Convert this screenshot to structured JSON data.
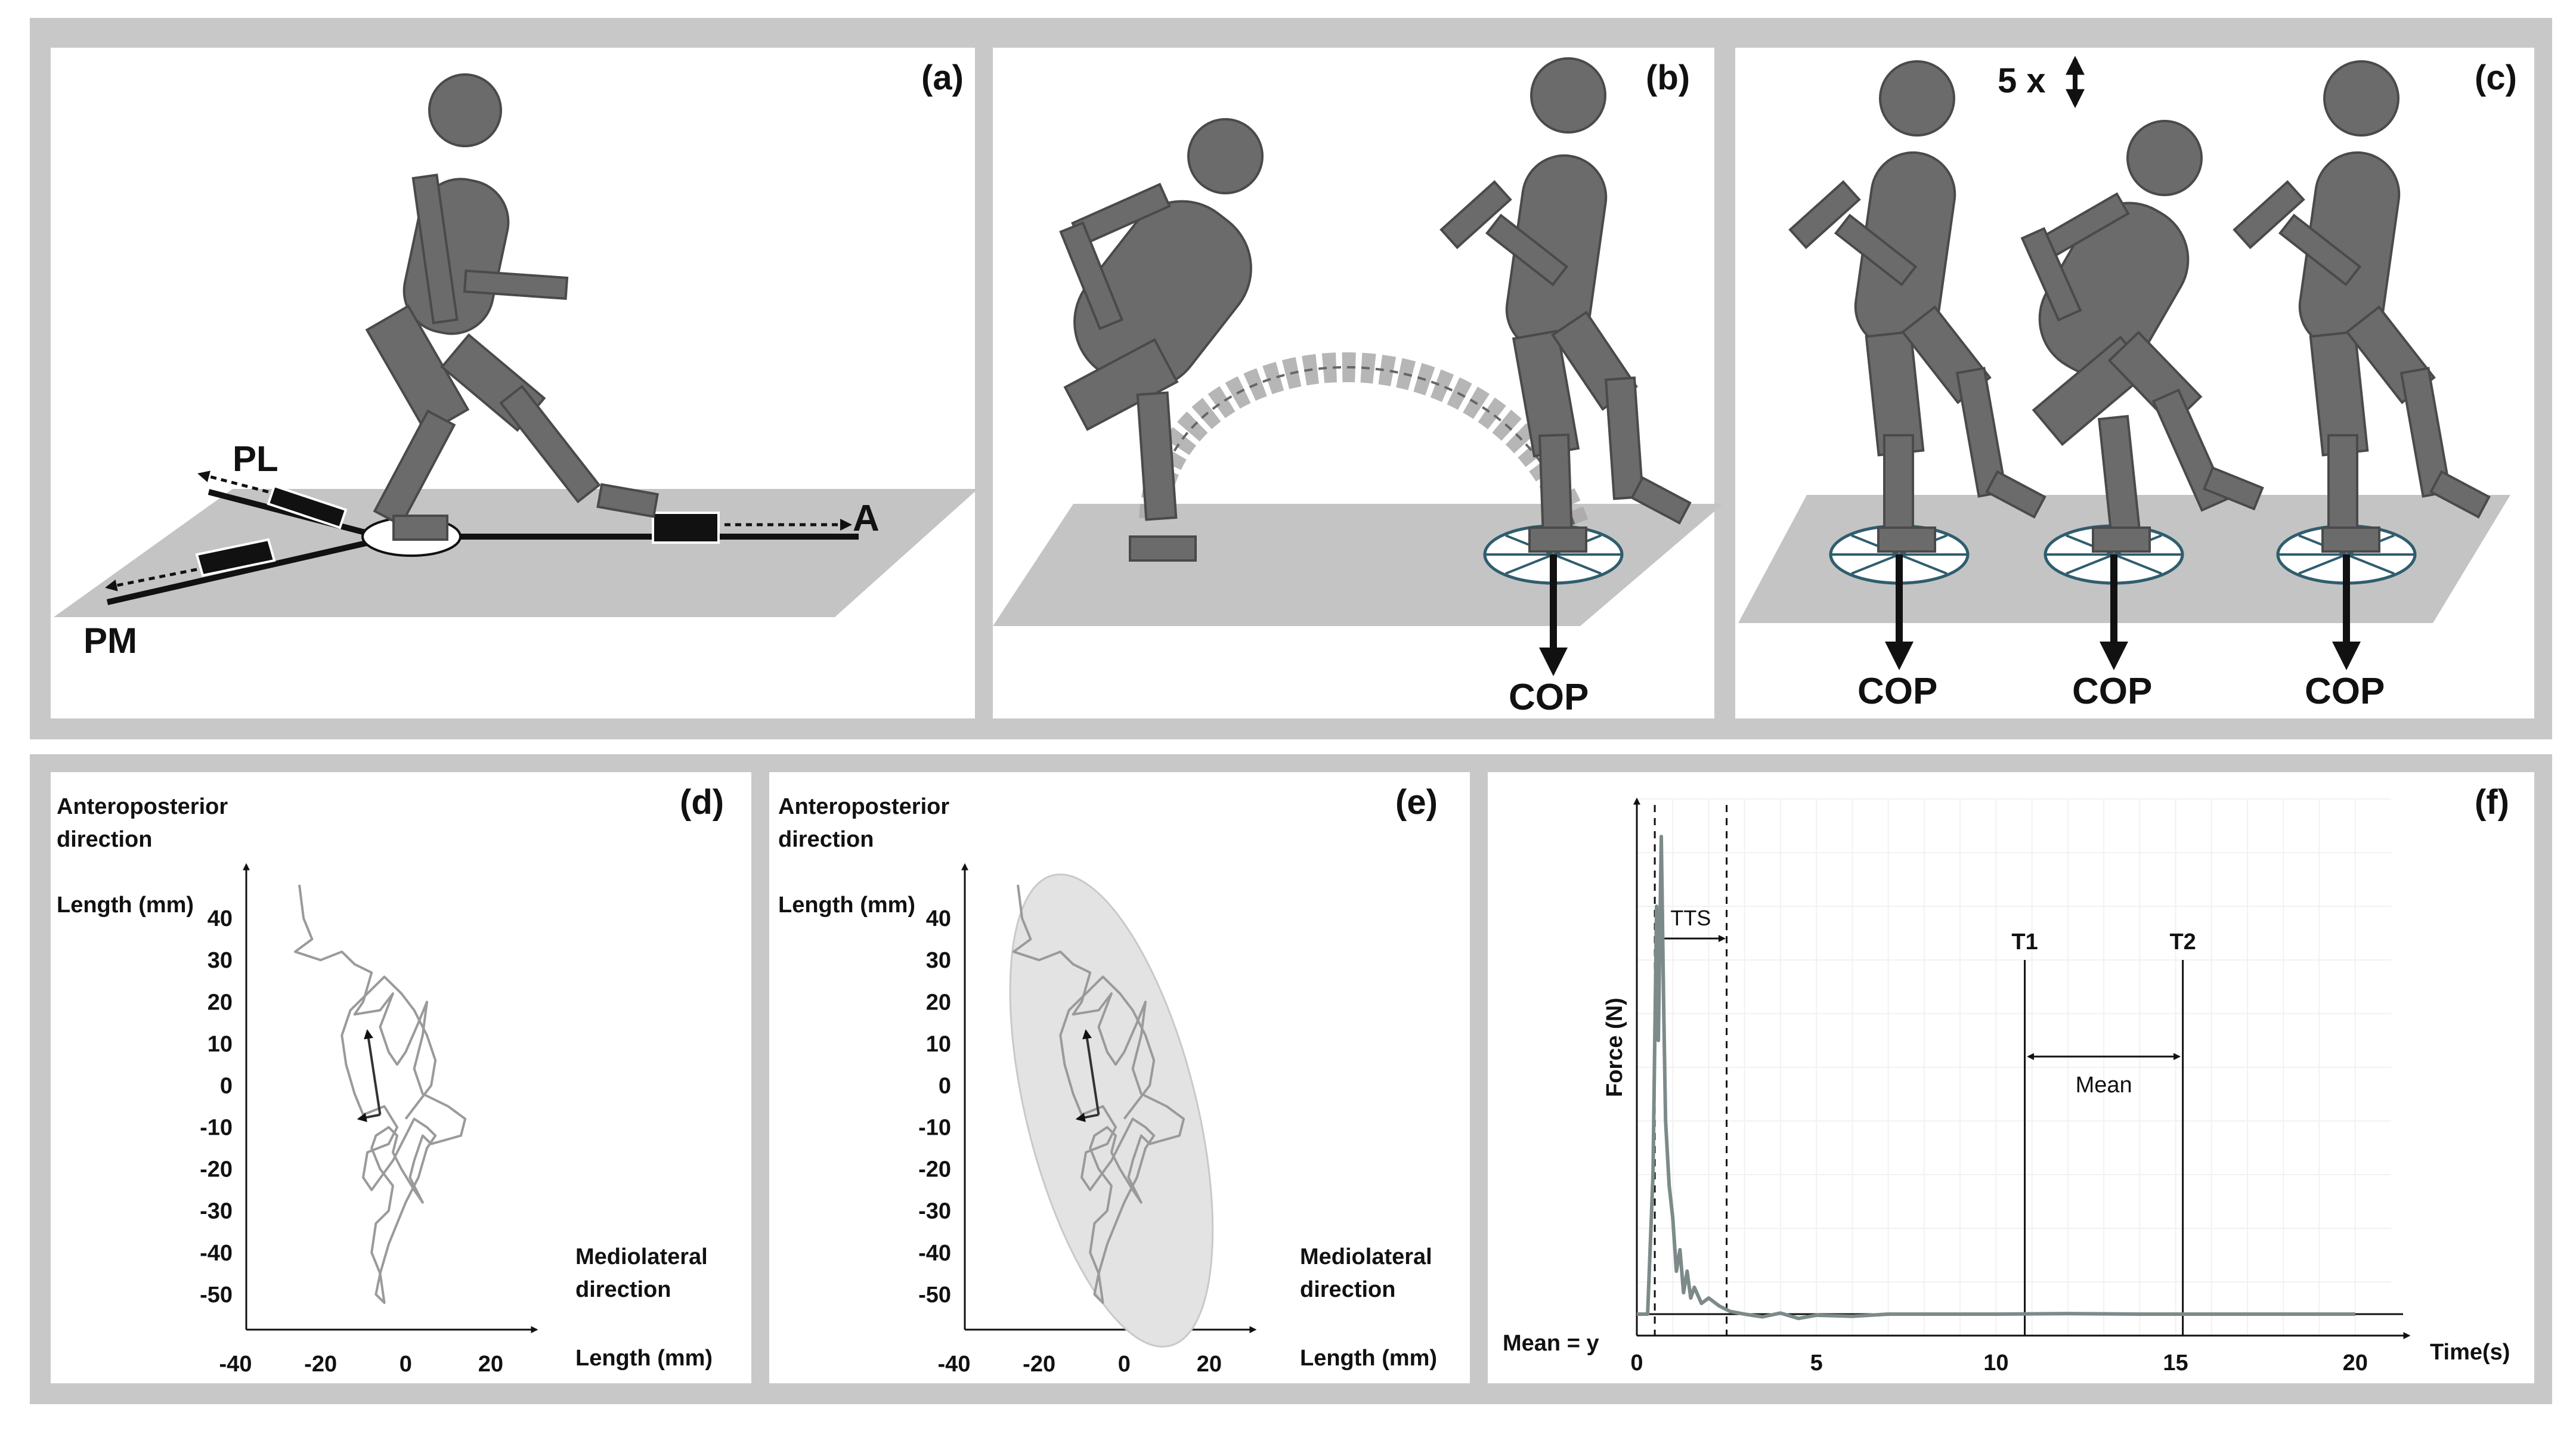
{
  "panels": {
    "a": {
      "label": "(a)",
      "arrow_labels": [
        "PL",
        "A",
        "PM"
      ]
    },
    "b": {
      "label": "(b)",
      "cop": "COP"
    },
    "c": {
      "label": "(c)",
      "repeat": "5 x",
      "cops": [
        "COP",
        "COP",
        "COP"
      ]
    },
    "d": {
      "label": "(d)"
    },
    "e": {
      "label": "(e)"
    },
    "f": {
      "label": "(f)"
    }
  },
  "colors": {
    "figure": "#6b6b6b",
    "figure_stroke": "#4a4a4a",
    "floor": "#c4c4c4",
    "frame": "#c8c8c8",
    "trace": "#9a9a9a",
    "ellipse": "#e3e3e3",
    "force_line": "#7d8a8a"
  },
  "chart_data": [
    {
      "type": "line",
      "panel": "(d)",
      "ylabel_top": "Anteroposterior",
      "ylabel_second": "direction",
      "ylabel_unit": "Length (mm)",
      "xlabel_top": "Mediolateral",
      "xlabel_second": "direction",
      "xlabel_unit": "Length (mm)",
      "xticks": [
        "-40",
        "-20",
        "0",
        "20"
      ],
      "yticks": [
        "40",
        "30",
        "20",
        "10",
        "0",
        "-10",
        "-20",
        "-30",
        "-40",
        "-50"
      ],
      "xlim": [
        -40,
        28
      ],
      "ylim": [
        -57,
        50
      ],
      "trace": [
        [
          -25,
          48
        ],
        [
          -24,
          40
        ],
        [
          -22,
          35
        ],
        [
          -26,
          32
        ],
        [
          -20,
          30
        ],
        [
          -15,
          32
        ],
        [
          -12,
          29
        ],
        [
          -8,
          27
        ],
        [
          -10,
          20
        ],
        [
          -12,
          17
        ],
        [
          -6,
          18
        ],
        [
          -3,
          22
        ],
        [
          -6,
          14
        ],
        [
          -4,
          8
        ],
        [
          -2,
          5
        ],
        [
          0,
          8
        ],
        [
          3,
          15
        ],
        [
          5,
          20
        ],
        [
          4,
          12
        ],
        [
          2,
          4
        ],
        [
          4,
          -2
        ],
        [
          10,
          -5
        ],
        [
          14,
          -8
        ],
        [
          13,
          -12
        ],
        [
          6,
          -14
        ],
        [
          4,
          -12
        ],
        [
          2,
          -18
        ],
        [
          1,
          -22
        ],
        [
          4,
          -28
        ],
        [
          2,
          -25
        ],
        [
          -1,
          -20
        ],
        [
          -3,
          -16
        ],
        [
          -2,
          -12
        ],
        [
          -4,
          -10
        ],
        [
          -7,
          -12
        ],
        [
          -8,
          -15
        ],
        [
          -6,
          -20
        ],
        [
          -3,
          -24
        ],
        [
          -4,
          -30
        ],
        [
          -7,
          -33
        ],
        [
          -8,
          -40
        ],
        [
          -6,
          -45
        ],
        [
          -7,
          -50
        ],
        [
          -5,
          -52
        ],
        [
          -6,
          -45
        ],
        [
          -4,
          -38
        ],
        [
          -2,
          -33
        ],
        [
          0,
          -28
        ],
        [
          3,
          -22
        ],
        [
          5,
          -15
        ],
        [
          7,
          -12
        ],
        [
          5,
          -10
        ],
        [
          2,
          -8
        ],
        [
          0,
          -12
        ],
        [
          -3,
          -18
        ],
        [
          -8,
          -25
        ],
        [
          -10,
          -22
        ],
        [
          -9,
          -16
        ],
        [
          -4,
          -14
        ],
        [
          -2,
          -10
        ],
        [
          -5,
          -5
        ],
        [
          -10,
          -7
        ],
        [
          -12,
          -2
        ],
        [
          -14,
          5
        ],
        [
          -15,
          12
        ],
        [
          -13,
          18
        ],
        [
          -9,
          22
        ],
        [
          -5,
          26
        ],
        [
          -1,
          22
        ],
        [
          2,
          18
        ],
        [
          5,
          12
        ],
        [
          7,
          6
        ],
        [
          6,
          0
        ],
        [
          3,
          -4
        ],
        [
          0,
          -8
        ]
      ],
      "vector_origin": [
        -6,
        -7
      ],
      "vector_ap": [
        -9,
        13
      ],
      "vector_ml": [
        -11,
        -8
      ]
    },
    {
      "type": "line",
      "panel": "(e)",
      "ylabel_top": "Anteroposterior",
      "ylabel_second": "direction",
      "ylabel_unit": "Length (mm)",
      "xlabel_top": "Mediolateral",
      "xlabel_second": "direction",
      "xlabel_unit": "Length (mm)",
      "xticks": [
        "-40",
        "-20",
        "0",
        "20"
      ],
      "yticks": [
        "40",
        "30",
        "20",
        "10",
        "0",
        "-10",
        "-20",
        "-30",
        "-40",
        "-50"
      ],
      "xlim": [
        -40,
        28
      ],
      "ylim": [
        -57,
        50
      ],
      "ellipse": {
        "cx": -3,
        "cy": -6,
        "rx": 20,
        "ry": 58,
        "rotation_deg": -14
      },
      "trace": [
        [
          -25,
          48
        ],
        [
          -24,
          40
        ],
        [
          -22,
          35
        ],
        [
          -26,
          32
        ],
        [
          -20,
          30
        ],
        [
          -15,
          32
        ],
        [
          -12,
          29
        ],
        [
          -8,
          27
        ],
        [
          -10,
          20
        ],
        [
          -12,
          17
        ],
        [
          -6,
          18
        ],
        [
          -3,
          22
        ],
        [
          -6,
          14
        ],
        [
          -4,
          8
        ],
        [
          -2,
          5
        ],
        [
          0,
          8
        ],
        [
          3,
          15
        ],
        [
          5,
          20
        ],
        [
          4,
          12
        ],
        [
          2,
          4
        ],
        [
          4,
          -2
        ],
        [
          10,
          -5
        ],
        [
          14,
          -8
        ],
        [
          13,
          -12
        ],
        [
          6,
          -14
        ],
        [
          4,
          -12
        ],
        [
          2,
          -18
        ],
        [
          1,
          -22
        ],
        [
          4,
          -28
        ],
        [
          2,
          -25
        ],
        [
          -1,
          -20
        ],
        [
          -3,
          -16
        ],
        [
          -2,
          -12
        ],
        [
          -4,
          -10
        ],
        [
          -7,
          -12
        ],
        [
          -8,
          -15
        ],
        [
          -6,
          -20
        ],
        [
          -3,
          -24
        ],
        [
          -4,
          -30
        ],
        [
          -7,
          -33
        ],
        [
          -8,
          -40
        ],
        [
          -6,
          -45
        ],
        [
          -7,
          -50
        ],
        [
          -5,
          -52
        ],
        [
          -6,
          -45
        ],
        [
          -4,
          -38
        ],
        [
          -2,
          -33
        ],
        [
          0,
          -28
        ],
        [
          3,
          -22
        ],
        [
          5,
          -15
        ],
        [
          7,
          -12
        ],
        [
          5,
          -10
        ],
        [
          2,
          -8
        ],
        [
          0,
          -12
        ],
        [
          -3,
          -18
        ],
        [
          -8,
          -25
        ],
        [
          -10,
          -22
        ],
        [
          -9,
          -16
        ],
        [
          -4,
          -14
        ],
        [
          -2,
          -10
        ],
        [
          -5,
          -5
        ],
        [
          -10,
          -7
        ],
        [
          -12,
          -2
        ],
        [
          -14,
          5
        ],
        [
          -15,
          12
        ],
        [
          -13,
          18
        ],
        [
          -9,
          22
        ],
        [
          -5,
          26
        ],
        [
          -1,
          22
        ],
        [
          2,
          18
        ],
        [
          5,
          12
        ],
        [
          7,
          6
        ],
        [
          6,
          0
        ],
        [
          3,
          -4
        ],
        [
          0,
          -8
        ]
      ],
      "vector_origin": [
        -6,
        -7
      ],
      "vector_ap": [
        -9,
        13
      ],
      "vector_ml": [
        -11,
        -8
      ]
    },
    {
      "type": "line",
      "panel": "(f)",
      "ylabel": "Force (N)",
      "xlabel": "Time(s)",
      "xticks": [
        0,
        5,
        10,
        15,
        20
      ],
      "xlim": [
        0,
        21
      ],
      "ylim": [
        0,
        100
      ],
      "mean_label": "Mean = y",
      "mean_value": 4,
      "tts_label": "TTS",
      "t1_label": "T1",
      "t1": 10.8,
      "t2_label": "T2",
      "t2": 15.2,
      "window_label": "Mean",
      "dashed_lines": [
        0.5,
        2.5
      ],
      "series": [
        [
          0,
          4
        ],
        [
          0.3,
          4
        ],
        [
          0.45,
          30
        ],
        [
          0.55,
          80
        ],
        [
          0.6,
          55
        ],
        [
          0.68,
          93
        ],
        [
          0.75,
          60
        ],
        [
          0.8,
          40
        ],
        [
          0.9,
          28
        ],
        [
          1.0,
          22
        ],
        [
          1.1,
          12
        ],
        [
          1.2,
          16
        ],
        [
          1.3,
          8
        ],
        [
          1.4,
          12
        ],
        [
          1.5,
          7
        ],
        [
          1.6,
          9
        ],
        [
          1.8,
          6
        ],
        [
          2.0,
          7
        ],
        [
          2.3,
          5.5
        ],
        [
          2.6,
          4.5
        ],
        [
          3,
          4
        ],
        [
          3.5,
          3.5
        ],
        [
          4,
          4.2
        ],
        [
          4.5,
          3.2
        ],
        [
          5,
          3.8
        ],
        [
          6,
          3.6
        ],
        [
          7,
          4
        ],
        [
          8,
          4
        ],
        [
          10,
          4
        ],
        [
          12,
          4.1
        ],
        [
          14,
          4
        ],
        [
          16,
          4
        ],
        [
          18,
          4
        ],
        [
          20,
          4
        ]
      ]
    }
  ]
}
